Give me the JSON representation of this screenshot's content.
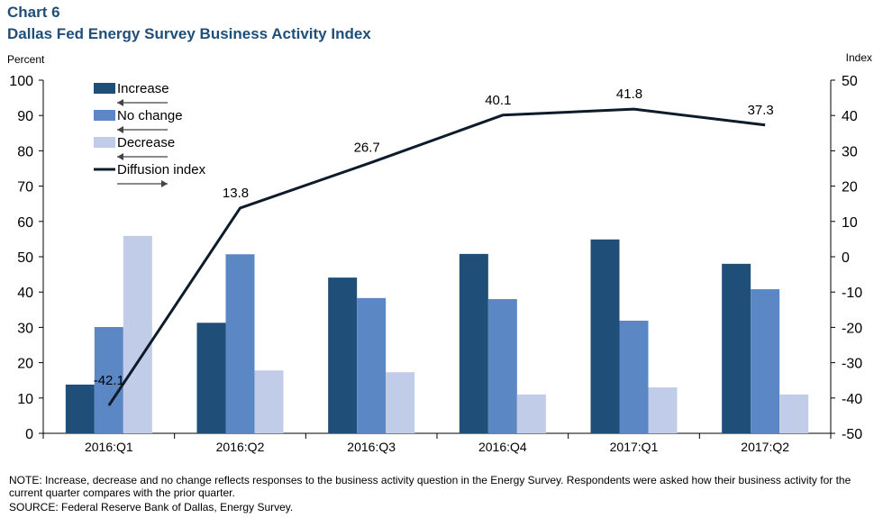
{
  "header": {
    "chart_label": "Chart 6",
    "title": "Dallas Fed Energy Survey Business Activity Index",
    "left_unit": "Percent",
    "right_unit": "Index"
  },
  "chart_data": {
    "type": "bar",
    "categories": [
      "2016:Q1",
      "2016:Q2",
      "2016:Q3",
      "2016:Q4",
      "2017:Q1",
      "2017:Q2"
    ],
    "series": [
      {
        "name": "Increase",
        "axis": "left",
        "color": "#1f4e79",
        "values": [
          13.8,
          31.3,
          44.1,
          50.8,
          54.9,
          48.0
        ]
      },
      {
        "name": "No change",
        "axis": "left",
        "color": "#5b87c5",
        "values": [
          30.1,
          50.7,
          38.3,
          38.0,
          31.9,
          40.8
        ]
      },
      {
        "name": "Decrease",
        "axis": "left",
        "color": "#c0cce8",
        "values": [
          55.9,
          17.8,
          17.3,
          11.0,
          13.0,
          11.0
        ]
      },
      {
        "name": "Diffusion index",
        "axis": "right",
        "type": "line",
        "color": "#0d1b2a",
        "values": [
          -42.1,
          13.8,
          26.7,
          40.1,
          41.8,
          37.3
        ]
      }
    ],
    "data_labels": [
      "-42.1",
      "13.8",
      "26.7",
      "40.1",
      "41.8",
      "37.3"
    ],
    "left_axis": {
      "min": 0,
      "max": 100,
      "step": 10,
      "ticks": [
        "0",
        "10",
        "20",
        "30",
        "40",
        "50",
        "60",
        "70",
        "80",
        "90",
        "100"
      ]
    },
    "right_axis": {
      "min": -50,
      "max": 50,
      "step": 10,
      "ticks": [
        "-50",
        "-40",
        "-30",
        "-20",
        "-10",
        "0",
        "10",
        "20",
        "30",
        "40",
        "50"
      ]
    },
    "legend_position": "top-left",
    "grid": false
  },
  "footer": {
    "note": "NOTE: Increase, decrease and no change reflects responses to the business activity question in the Energy Survey. Respondents were asked how their business activity for the current quarter compares with the prior quarter.",
    "source": "SOURCE: Federal Reserve Bank of Dallas, Energy Survey."
  }
}
